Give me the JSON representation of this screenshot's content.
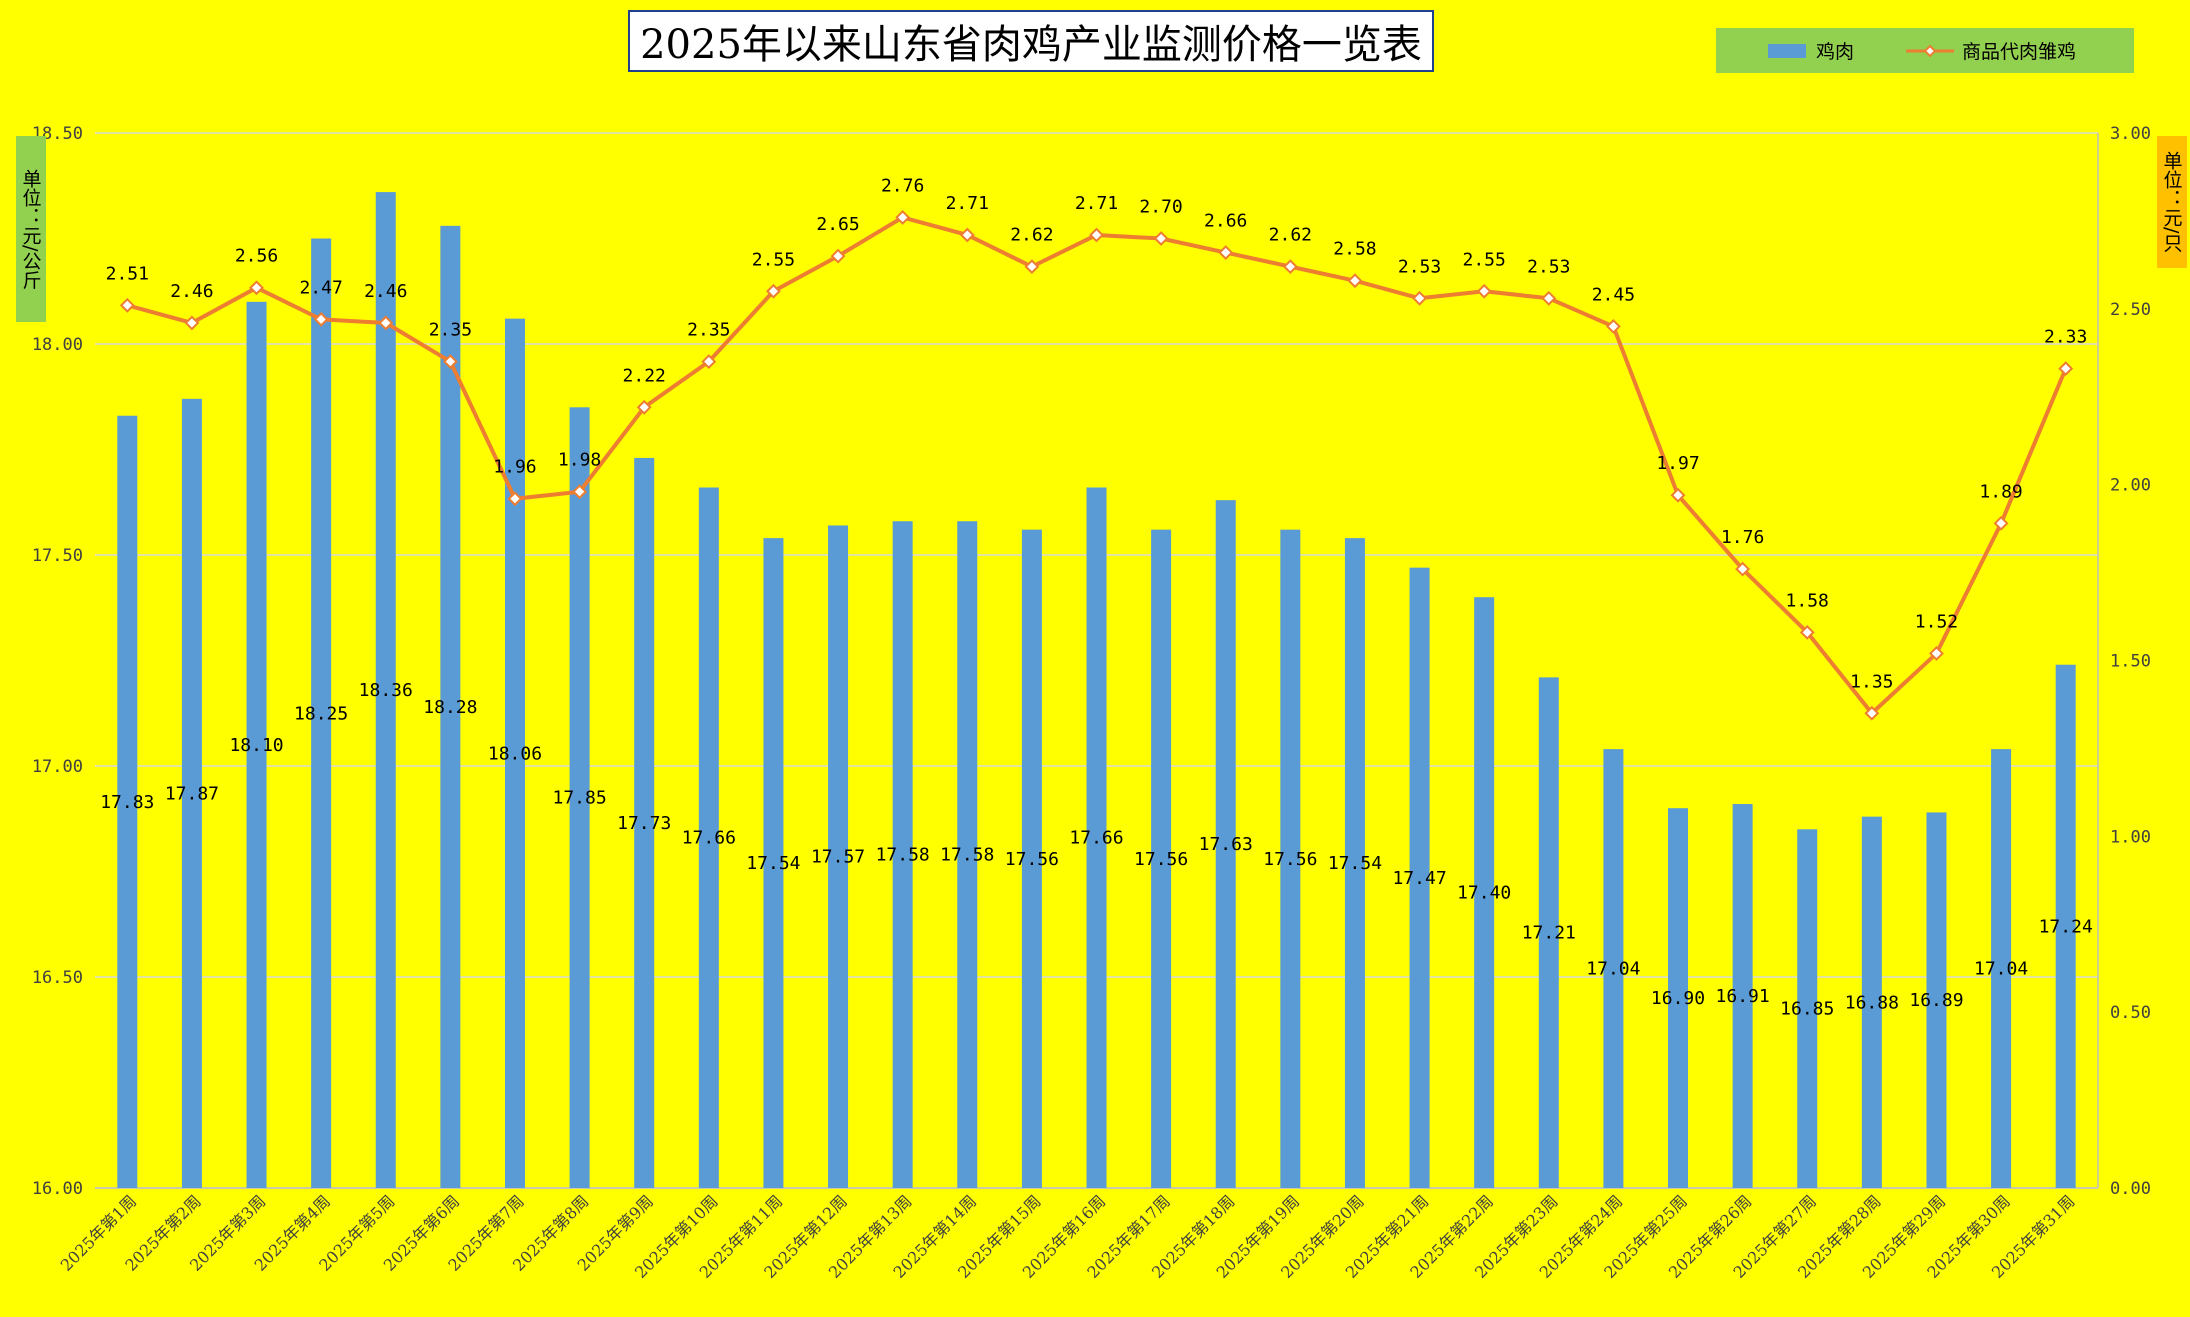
{
  "chart_data": {
    "type": "bar+line",
    "title": "2025年以来山东省肉鸡产业监测价格一览表",
    "left_unit": "单位：元/公斤",
    "right_unit": "单位：元/只",
    "ylim_left": [
      16.0,
      18.5
    ],
    "ylim_right": [
      0.0,
      3.0
    ],
    "yticks_left": [
      "16.00",
      "16.50",
      "17.00",
      "17.50",
      "18.00",
      "18.50"
    ],
    "yticks_right": [
      "0.00",
      "0.50",
      "1.00",
      "1.50",
      "2.00",
      "2.50",
      "3.00"
    ],
    "grid": true,
    "legend_position": "top-right",
    "categories": [
      "2025年第1周",
      "2025年第2周",
      "2025年第3周",
      "2025年第4周",
      "2025年第5周",
      "2025年第6周",
      "2025年第7周",
      "2025年第8周",
      "2025年第9周",
      "2025年第10周",
      "2025年第11周",
      "2025年第12周",
      "2025年第13周",
      "2025年第14周",
      "2025年第15周",
      "2025年第16周",
      "2025年第17周",
      "2025年第18周",
      "2025年第19周",
      "2025年第20周",
      "2025年第21周",
      "2025年第22周",
      "2025年第23周",
      "2025年第24周",
      "2025年第25周",
      "2025年第26周",
      "2025年第27周",
      "2025年第28周",
      "2025年第29周",
      "2025年第30周",
      "2025年第31周"
    ],
    "series": [
      {
        "name": "鸡肉",
        "type": "bar",
        "axis": "left",
        "color": "#5b9bd5",
        "values": [
          17.83,
          17.87,
          18.1,
          18.25,
          18.36,
          18.28,
          18.06,
          17.85,
          17.73,
          17.66,
          17.54,
          17.57,
          17.58,
          17.58,
          17.56,
          17.66,
          17.56,
          17.63,
          17.56,
          17.54,
          17.47,
          17.4,
          17.21,
          17.04,
          16.9,
          16.91,
          16.85,
          16.88,
          16.89,
          17.04,
          17.24
        ]
      },
      {
        "name": "商品代肉雏鸡",
        "type": "line",
        "axis": "right",
        "color": "#ed7d31",
        "values": [
          2.51,
          2.46,
          2.56,
          2.47,
          2.46,
          2.35,
          1.96,
          1.98,
          2.22,
          2.35,
          2.55,
          2.65,
          2.76,
          2.71,
          2.62,
          2.71,
          2.7,
          2.66,
          2.62,
          2.58,
          2.53,
          2.55,
          2.53,
          2.45,
          1.97,
          1.76,
          1.58,
          1.35,
          1.52,
          1.89,
          2.33
        ]
      }
    ]
  }
}
